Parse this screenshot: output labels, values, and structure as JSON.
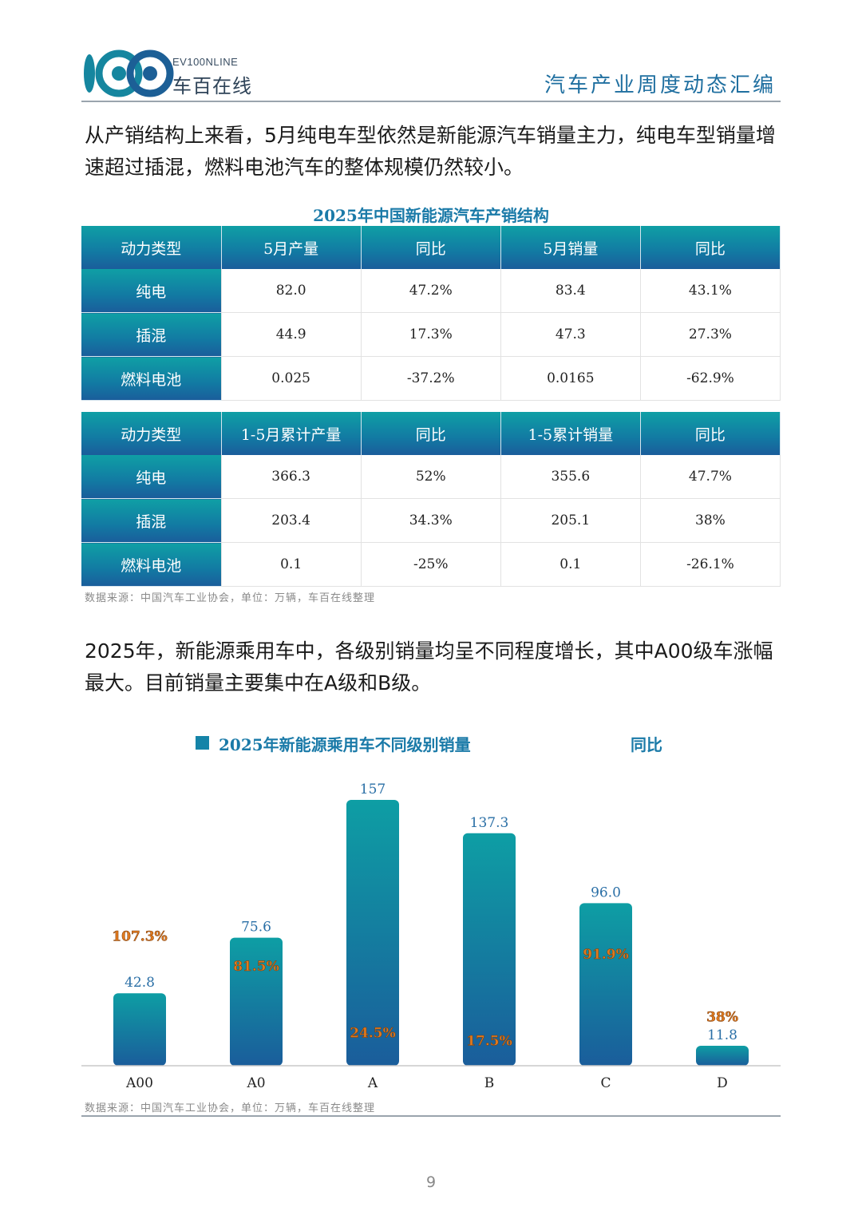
{
  "header": {
    "logo_sub": "EV100NLINE",
    "logo_main": "车百在线",
    "title": "汽车产业周度动态汇编"
  },
  "paragraph1": "从产销结构上来看，5月纯电车型依然是新能源汽车销量主力，纯电车型销量增速超过插混，燃料电池汽车的整体规模仍然较小。",
  "table_title": "2025年中国新能源汽车产销结构",
  "table1": {
    "headers": [
      "动力类型",
      "5月产量",
      "同比",
      "5月销量",
      "同比"
    ],
    "rows": [
      [
        "纯电",
        "82.0",
        "47.2%",
        "83.4",
        "43.1%"
      ],
      [
        "插混",
        "44.9",
        "17.3%",
        "47.3",
        "27.3%"
      ],
      [
        "燃料电池",
        "0.025",
        "-37.2%",
        "0.0165",
        "-62.9%"
      ]
    ]
  },
  "table2": {
    "headers": [
      "动力类型",
      "1-5月累计产量",
      "同比",
      "1-5累计销量",
      "同比"
    ],
    "rows": [
      [
        "纯电",
        "366.3",
        "52%",
        "355.6",
        "47.7%"
      ],
      [
        "插混",
        "203.4",
        "34.3%",
        "205.1",
        "38%"
      ],
      [
        "燃料电池",
        "0.1",
        "-25%",
        "0.1",
        "-26.1%"
      ]
    ]
  },
  "source_note": "数据来源：中国汽车工业协会，单位：万辆，车百在线整理",
  "paragraph2": "2025年，新能源乘用车中，各级别销量均呈不同程度增长，其中A00级车涨幅最大。目前销量主要集中在A级和B级。",
  "chart_data": {
    "type": "bar",
    "categories": [
      "A00",
      "A0",
      "A",
      "B",
      "C",
      "D"
    ],
    "series": [
      {
        "name": "2025年新能源乘用车不同级别销量",
        "values": [
          42.8,
          75.6,
          157,
          137.3,
          96.0,
          11.8
        ],
        "value_labels": [
          "42.8",
          "75.6",
          "157",
          "137.3",
          "96.0",
          "11.8"
        ],
        "color": "#1584a8"
      },
      {
        "name": "同比",
        "values": [
          107.3,
          81.5,
          24.5,
          17.5,
          91.9,
          38
        ],
        "value_labels": [
          "107.3%",
          "81.5%",
          "24.5%",
          "17.5%",
          "91.9%",
          "38%"
        ],
        "color": "#e07a1f"
      }
    ],
    "ylim": [
      0,
      165
    ],
    "yoy_ylim": [
      0,
      240
    ],
    "grid": false,
    "legend_position": "top"
  },
  "page_number": "9"
}
